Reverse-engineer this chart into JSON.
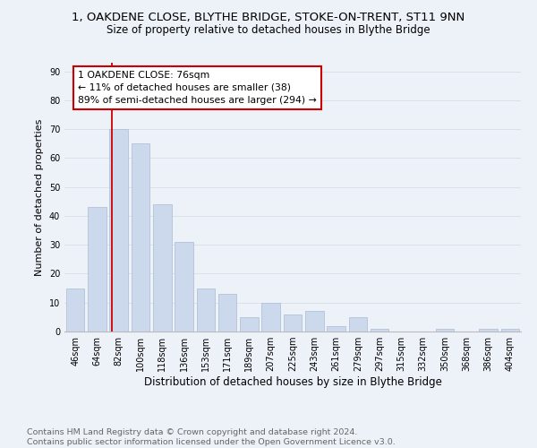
{
  "title": "1, OAKDENE CLOSE, BLYTHE BRIDGE, STOKE-ON-TRENT, ST11 9NN",
  "subtitle": "Size of property relative to detached houses in Blythe Bridge",
  "xlabel": "Distribution of detached houses by size in Blythe Bridge",
  "ylabel": "Number of detached properties",
  "footer_line1": "Contains HM Land Registry data © Crown copyright and database right 2024.",
  "footer_line2": "Contains public sector information licensed under the Open Government Licence v3.0.",
  "bar_labels": [
    "46sqm",
    "64sqm",
    "82sqm",
    "100sqm",
    "118sqm",
    "136sqm",
    "153sqm",
    "171sqm",
    "189sqm",
    "207sqm",
    "225sqm",
    "243sqm",
    "261sqm",
    "279sqm",
    "297sqm",
    "315sqm",
    "332sqm",
    "350sqm",
    "368sqm",
    "386sqm",
    "404sqm"
  ],
  "bar_values": [
    15,
    43,
    70,
    65,
    44,
    31,
    15,
    13,
    5,
    10,
    6,
    7,
    2,
    5,
    1,
    0,
    0,
    1,
    0,
    1,
    1
  ],
  "bar_color": "#ccd9ec",
  "bar_edgecolor": "#aabbd4",
  "grid_color": "#d8e0ec",
  "bg_color": "#edf1f8",
  "annotation_text": "1 OAKDENE CLOSE: 76sqm\n← 11% of detached houses are smaller (38)\n89% of semi-detached houses are larger (294) →",
  "annotation_box_color": "#ffffff",
  "annotation_box_edgecolor": "#cc0000",
  "vline_color": "#cc0000",
  "ylim": [
    0,
    93
  ],
  "yticks": [
    0,
    10,
    20,
    30,
    40,
    50,
    60,
    70,
    80,
    90
  ],
  "title_fontsize": 9.5,
  "subtitle_fontsize": 8.5,
  "xlabel_fontsize": 8.5,
  "ylabel_fontsize": 8,
  "tick_fontsize": 7,
  "footer_fontsize": 6.8,
  "annotation_fontsize": 7.8
}
